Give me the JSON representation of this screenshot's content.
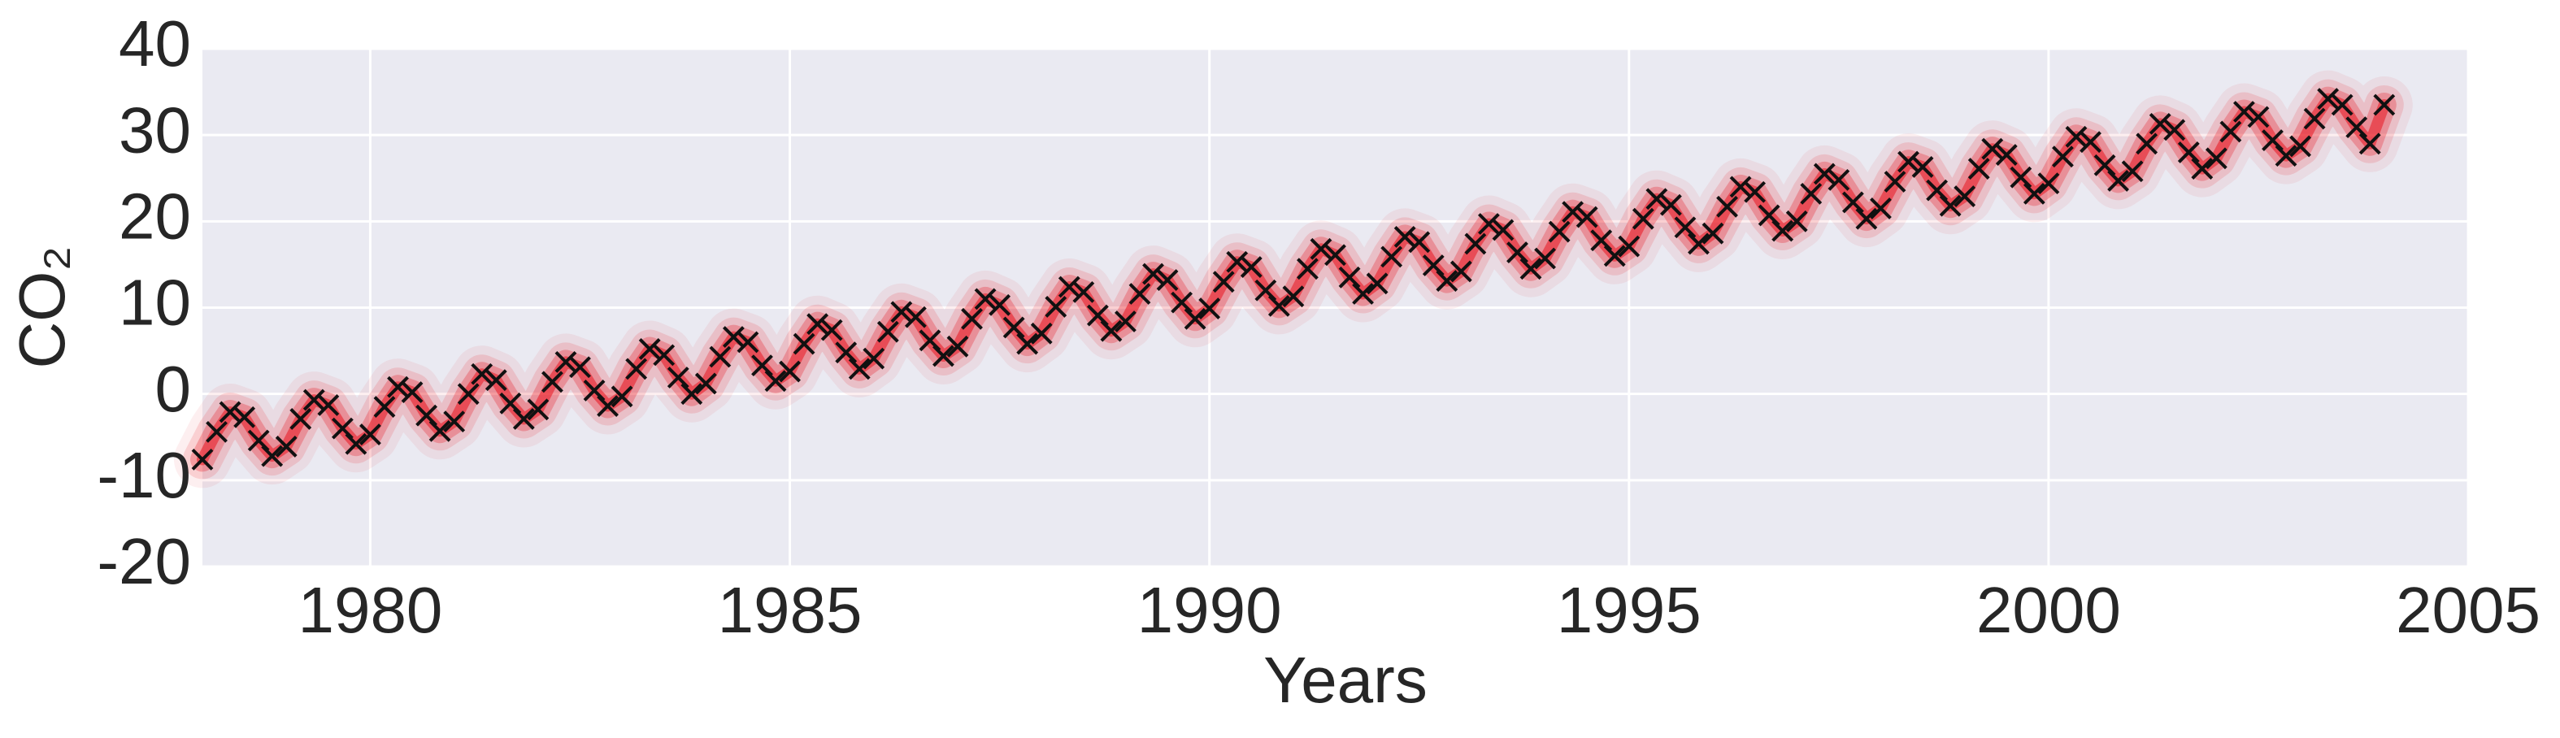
{
  "chart_data": {
    "type": "scatter",
    "xlabel": "Years",
    "ylabel": "CO₂",
    "xlim": [
      1978,
      2005
    ],
    "xticks": [
      1980,
      1985,
      1990,
      1995,
      2000,
      2005
    ],
    "ylim": [
      -20,
      40
    ],
    "yticks": [
      -20,
      -10,
      0,
      10,
      20,
      30,
      40
    ],
    "grid": true,
    "background": "#eaeaf2",
    "band_color": "#e8202a",
    "series": [
      {
        "color": "#111111",
        "marker": "x",
        "x": [
          1978,
          1978.17,
          1978.33,
          1978.5,
          1978.67,
          1978.83,
          1979,
          1979.17,
          1979.33,
          1979.5,
          1979.67,
          1979.83,
          1980,
          1980.17,
          1980.33,
          1980.5,
          1980.67,
          1980.83,
          1981,
          1981.17,
          1981.33,
          1981.5,
          1981.67,
          1981.83,
          1982,
          1982.17,
          1982.33,
          1982.5,
          1982.67,
          1982.83,
          1983,
          1983.17,
          1983.33,
          1983.5,
          1983.67,
          1983.83,
          1984,
          1984.17,
          1984.33,
          1984.5,
          1984.67,
          1984.83,
          1985,
          1985.17,
          1985.33,
          1985.5,
          1985.67,
          1985.83,
          1986,
          1986.17,
          1986.33,
          1986.5,
          1986.67,
          1986.83,
          1987,
          1987.17,
          1987.33,
          1987.5,
          1987.67,
          1987.83,
          1988,
          1988.17,
          1988.33,
          1988.5,
          1988.67,
          1988.83,
          1989,
          1989.17,
          1989.33,
          1989.5,
          1989.67,
          1989.83,
          1990,
          1990.17,
          1990.33,
          1990.5,
          1990.67,
          1990.83,
          1991,
          1991.17,
          1991.33,
          1991.5,
          1991.67,
          1991.83,
          1992,
          1992.17,
          1992.33,
          1992.5,
          1992.67,
          1992.83,
          1993,
          1993.17,
          1993.33,
          1993.5,
          1993.67,
          1993.83,
          1994,
          1994.17,
          1994.33,
          1994.5,
          1994.67,
          1994.83,
          1995,
          1995.17,
          1995.33,
          1995.5,
          1995.67,
          1995.83,
          1996,
          1996.17,
          1996.33,
          1996.5,
          1996.67,
          1996.83,
          1997,
          1997.17,
          1997.33,
          1997.5,
          1997.67,
          1997.83,
          1998,
          1998.17,
          1998.33,
          1998.5,
          1998.67,
          1998.83,
          1999,
          1999.17,
          1999.33,
          1999.5,
          1999.67,
          1999.83,
          2000,
          2000.17,
          2000.33,
          2000.5,
          2000.67,
          2000.83,
          2001,
          2001.17,
          2001.33,
          2001.5,
          2001.67,
          2001.83,
          2002,
          2002.17,
          2002.33,
          2002.5,
          2002.67,
          2002.83,
          2003,
          2003.17,
          2003.33,
          2003.5,
          2003.67,
          2003.83,
          2004
        ],
        "values": [
          -7.6,
          -4.4,
          -2.1,
          -2.7,
          -5.4,
          -7.2,
          -6.1,
          -2.9,
          -0.7,
          -1.3,
          -4.0,
          -5.8,
          -4.7,
          -1.5,
          0.8,
          0.2,
          -2.5,
          -4.3,
          -3.2,
          0.0,
          2.3,
          1.6,
          -1.1,
          -2.9,
          -1.8,
          1.4,
          3.7,
          3.1,
          0.4,
          -1.4,
          -0.3,
          2.9,
          5.2,
          4.5,
          1.9,
          0.0,
          1.2,
          4.3,
          6.6,
          6.0,
          3.3,
          1.5,
          2.6,
          5.8,
          8.1,
          7.4,
          4.8,
          2.9,
          4.1,
          7.2,
          9.5,
          8.9,
          6.2,
          4.4,
          5.5,
          8.7,
          11.0,
          10.3,
          7.7,
          5.8,
          7.0,
          10.1,
          12.4,
          11.8,
          9.1,
          7.3,
          8.4,
          11.6,
          13.9,
          13.2,
          10.6,
          8.7,
          9.9,
          13.0,
          15.3,
          14.7,
          12.0,
          10.2,
          11.3,
          14.5,
          16.8,
          16.1,
          13.5,
          11.6,
          12.8,
          15.9,
          18.2,
          17.6,
          14.9,
          13.1,
          14.2,
          17.4,
          19.7,
          19.0,
          16.4,
          14.5,
          15.7,
          18.8,
          21.1,
          20.5,
          17.8,
          16.0,
          17.1,
          20.3,
          22.6,
          21.9,
          19.3,
          17.4,
          18.6,
          21.7,
          24.0,
          23.4,
          20.7,
          18.9,
          20.0,
          23.2,
          25.5,
          24.8,
          22.2,
          20.3,
          21.5,
          24.6,
          26.9,
          26.3,
          23.6,
          21.8,
          22.9,
          26.1,
          28.4,
          27.7,
          25.1,
          23.2,
          24.4,
          27.5,
          29.8,
          29.2,
          26.5,
          24.7,
          25.8,
          29.0,
          31.3,
          30.6,
          28.0,
          26.1,
          27.3,
          30.4,
          32.7,
          32.1,
          29.4,
          27.6,
          28.7,
          31.9,
          34.2,
          33.5,
          30.9,
          29.0,
          33.5
        ]
      }
    ]
  }
}
